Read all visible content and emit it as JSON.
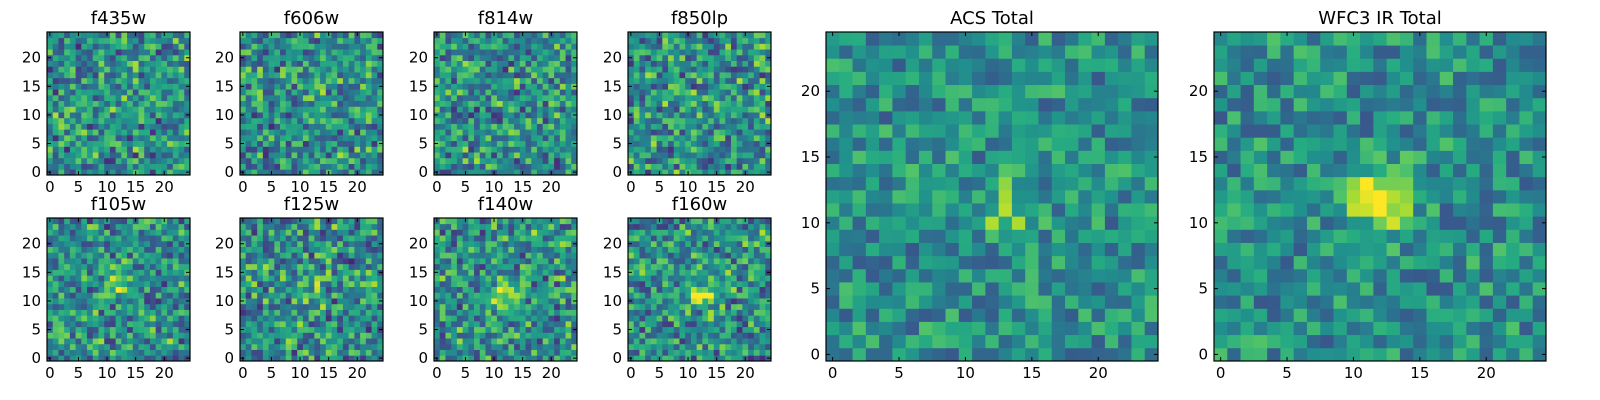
{
  "figure": {
    "colormap": [
      "#440154",
      "#472c7a",
      "#3b518b",
      "#2c718e",
      "#21908d",
      "#27ad81",
      "#5cc863",
      "#aadc32",
      "#fde725"
    ]
  },
  "chart_data": [
    {
      "type": "heatmap",
      "title": "f435w",
      "grid_size": 25,
      "xticks": [
        0,
        5,
        10,
        15,
        20
      ],
      "yticks": [
        0,
        5,
        10,
        15,
        20
      ],
      "value_range": [
        0,
        1
      ],
      "seed": 11,
      "source_peak": null
    },
    {
      "type": "heatmap",
      "title": "f606w",
      "grid_size": 25,
      "xticks": [
        0,
        5,
        10,
        15,
        20
      ],
      "yticks": [
        0,
        5,
        10,
        15,
        20
      ],
      "value_range": [
        0,
        1
      ],
      "seed": 23,
      "source_peak": null
    },
    {
      "type": "heatmap",
      "title": "f814w",
      "grid_size": 25,
      "xticks": [
        0,
        5,
        10,
        15,
        20
      ],
      "yticks": [
        0,
        5,
        10,
        15,
        20
      ],
      "value_range": [
        0,
        1
      ],
      "seed": 37,
      "source_peak": null
    },
    {
      "type": "heatmap",
      "title": "f850lp",
      "grid_size": 25,
      "xticks": [
        0,
        5,
        10,
        15,
        20
      ],
      "yticks": [
        0,
        5,
        10,
        15,
        20
      ],
      "value_range": [
        0,
        1
      ],
      "seed": 41,
      "source_peak": null
    },
    {
      "type": "heatmap",
      "title": "f105w",
      "grid_size": 25,
      "xticks": [
        0,
        5,
        10,
        15,
        20
      ],
      "yticks": [
        0,
        5,
        10,
        15,
        20
      ],
      "value_range": [
        0,
        1
      ],
      "seed": 53,
      "source_peak": {
        "x": 12,
        "y": 13,
        "amplitude": 0.3
      }
    },
    {
      "type": "heatmap",
      "title": "f125w",
      "grid_size": 25,
      "xticks": [
        0,
        5,
        10,
        15,
        20
      ],
      "yticks": [
        0,
        5,
        10,
        15,
        20
      ],
      "value_range": [
        0,
        1
      ],
      "seed": 67,
      "source_peak": {
        "x": 12,
        "y": 12,
        "amplitude": 0.2
      }
    },
    {
      "type": "heatmap",
      "title": "f140w",
      "grid_size": 25,
      "xticks": [
        0,
        5,
        10,
        15,
        20
      ],
      "yticks": [
        0,
        5,
        10,
        15,
        20
      ],
      "value_range": [
        0,
        1
      ],
      "seed": 79,
      "source_peak": {
        "x": 12,
        "y": 11,
        "amplitude": 0.5
      }
    },
    {
      "type": "heatmap",
      "title": "f160w",
      "grid_size": 25,
      "xticks": [
        0,
        5,
        10,
        15,
        20
      ],
      "yticks": [
        0,
        5,
        10,
        15,
        20
      ],
      "value_range": [
        0,
        1
      ],
      "seed": 83,
      "source_peak": {
        "x": 12,
        "y": 11,
        "amplitude": 0.45
      }
    },
    {
      "type": "heatmap",
      "title": "ACS Total",
      "grid_size": 25,
      "xticks": [
        0,
        5,
        10,
        15,
        20
      ],
      "yticks": [
        0,
        5,
        10,
        15,
        20
      ],
      "value_range": [
        0,
        1
      ],
      "seed": 97,
      "source_peak": {
        "x": 13,
        "y": 11,
        "amplitude": 0.25
      }
    },
    {
      "type": "heatmap",
      "title": "WFC3 IR Total",
      "grid_size": 25,
      "xticks": [
        0,
        5,
        10,
        15,
        20
      ],
      "yticks": [
        0,
        5,
        10,
        15,
        20
      ],
      "value_range": [
        0,
        1
      ],
      "seed": 101,
      "source_peak": {
        "x": 12,
        "y": 12,
        "amplitude": 0.6
      }
    }
  ]
}
